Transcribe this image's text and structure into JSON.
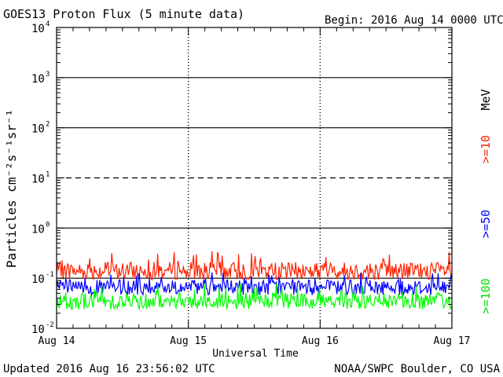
{
  "chart_data": {
    "type": "line",
    "title": "GOES13 Proton Flux (5 minute data)",
    "begin_label": "Begin: 2016 Aug 14 0000 UTC",
    "xlabel": "Universal Time",
    "ylabel": "Particles cm⁻²s⁻¹sr⁻¹",
    "x_ticks": [
      "Aug 14",
      "Aug 15",
      "Aug 16",
      "Aug 17"
    ],
    "xlim": [
      "2016-08-14",
      "2016-08-17"
    ],
    "y_scale": "log",
    "ylim": [
      0.01,
      10000
    ],
    "y_ticks": [
      {
        "base": "10",
        "exp": "-2"
      },
      {
        "base": "10",
        "exp": "-1"
      },
      {
        "base": "10",
        "exp": "0"
      },
      {
        "base": "10",
        "exp": "1"
      },
      {
        "base": "10",
        "exp": "2"
      },
      {
        "base": "10",
        "exp": "3"
      },
      {
        "base": "10",
        "exp": "4"
      }
    ],
    "threshold_line": 10,
    "units_label": "MeV",
    "series": [
      {
        "name": ">=10",
        "color": "#ff2200",
        "typical": 0.14,
        "min": 0.09,
        "max": 0.35
      },
      {
        "name": ">=50",
        "color": "#0000ff",
        "typical": 0.065,
        "min": 0.04,
        "max": 0.13
      },
      {
        "name": ">=100",
        "color": "#00ff00",
        "typical": 0.035,
        "min": 0.022,
        "max": 0.08
      }
    ]
  },
  "footer": {
    "updated": "Updated 2016 Aug 16 23:56:02 UTC",
    "source": "NOAA/SWPC Boulder, CO USA"
  }
}
